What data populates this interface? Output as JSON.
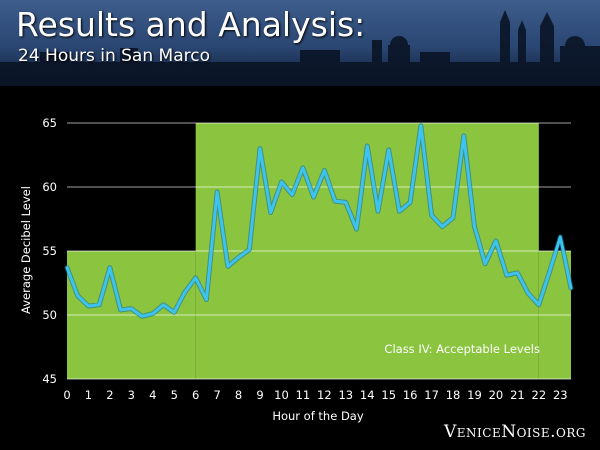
{
  "slide": {
    "title": "Results and Analysis:",
    "subtitle": "24 Hours in San Marco",
    "brand": "VeniceNoise.org"
  },
  "colors": {
    "background": "#000000",
    "band_fill": "#8bc53f",
    "line": "#3cc3f0",
    "grid": "#ffffff",
    "text": "#ffffff"
  },
  "chart_data": {
    "type": "line",
    "xlabel": "Hour of the Day",
    "ylabel": "Average Decibel Level",
    "xlim": [
      0,
      23.5
    ],
    "ylim": [
      45,
      65
    ],
    "xticks": [
      0,
      1,
      2,
      3,
      4,
      5,
      6,
      7,
      8,
      9,
      10,
      11,
      12,
      13,
      14,
      15,
      16,
      17,
      18,
      19,
      20,
      21,
      22,
      23
    ],
    "yticks": [
      45,
      50,
      55,
      60,
      65
    ],
    "grid": "horizontal",
    "bands": [
      {
        "label": "Class IV: Acceptable Levels",
        "regions": [
          {
            "x": [
              0,
              6
            ],
            "y": [
              45,
              55
            ]
          },
          {
            "x": [
              6,
              22
            ],
            "y": [
              45,
              65
            ]
          },
          {
            "x": [
              22,
              23.5
            ],
            "y": [
              45,
              55
            ]
          }
        ]
      }
    ],
    "series": [
      {
        "x": [
          0,
          0.5,
          1,
          1.5,
          2,
          2.5,
          3,
          3.5,
          4,
          4.5,
          5,
          5.5,
          6,
          6.5,
          7,
          7.5,
          8,
          8.5,
          9,
          9.5,
          10,
          10.5,
          11,
          11.5,
          12,
          12.5,
          13,
          13.5,
          14,
          14.5,
          15,
          15.5,
          16,
          16.5,
          17,
          17.5,
          18,
          18.5,
          19,
          19.5,
          20,
          20.5,
          21,
          21.5,
          22,
          22.5,
          23,
          23.5
        ],
        "values": [
          53.7,
          51.5,
          50.7,
          50.8,
          53.7,
          50.4,
          50.5,
          49.9,
          50.1,
          50.8,
          50.2,
          51.8,
          52.9,
          51.2,
          59.6,
          53.8,
          54.5,
          55.1,
          63.0,
          58.0,
          60.4,
          59.4,
          61.5,
          59.2,
          61.3,
          58.9,
          58.8,
          56.7,
          63.2,
          58.1,
          62.9,
          58.1,
          58.8,
          64.8,
          57.8,
          56.9,
          57.6,
          64.0,
          56.9,
          54.0,
          55.8,
          53.1,
          53.3,
          51.7,
          50.8,
          53.4,
          56.1,
          52.1
        ]
      }
    ]
  }
}
